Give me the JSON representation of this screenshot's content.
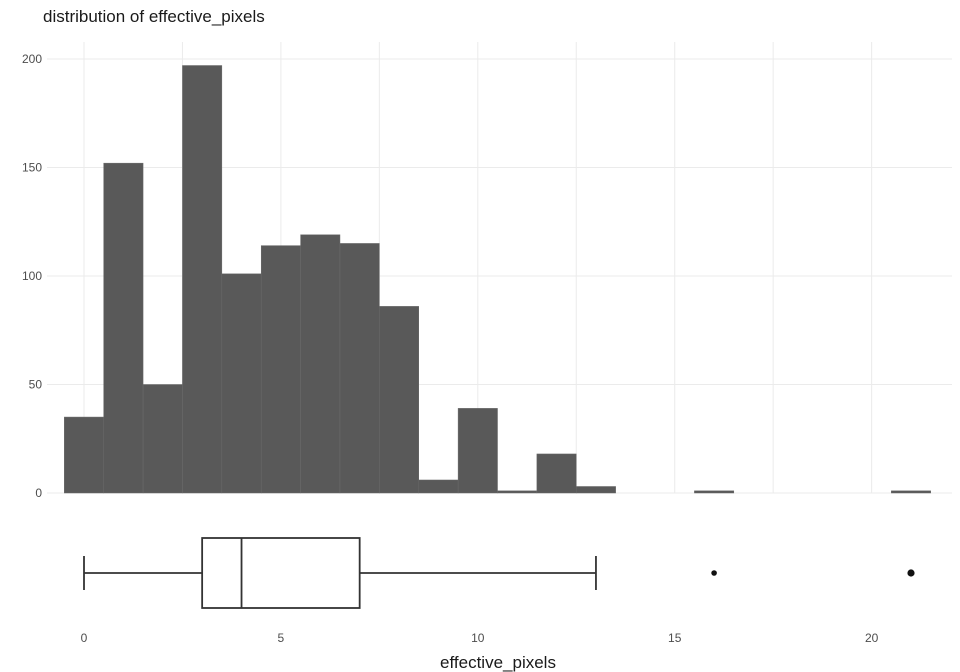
{
  "chart_data": {
    "type": "bar",
    "title": "distribution of effective_pixels",
    "xlabel": "effective_pixels",
    "ylabel": "",
    "grid": true,
    "xlim": [
      -0.5,
      21.5
    ],
    "ylim": [
      0,
      200
    ],
    "x_ticks": [
      0,
      5,
      10,
      15,
      20
    ],
    "y_ticks": [
      0,
      50,
      100,
      150,
      200
    ],
    "histogram": {
      "bin_width": 1,
      "bin_centers": [
        0,
        1,
        2,
        3,
        4,
        5,
        6,
        7,
        8,
        9,
        10,
        11,
        12,
        13,
        14,
        15,
        16,
        17,
        18,
        19,
        20,
        21
      ],
      "counts": [
        35,
        152,
        50,
        197,
        101,
        114,
        119,
        115,
        86,
        6,
        39,
        1,
        18,
        3,
        0,
        0,
        1,
        0,
        0,
        0,
        0,
        1
      ]
    },
    "boxplot": {
      "whisker_low": 0,
      "q1": 3,
      "median": 4,
      "q3": 7,
      "whisker_high": 13,
      "outliers": [
        16,
        21
      ]
    }
  }
}
